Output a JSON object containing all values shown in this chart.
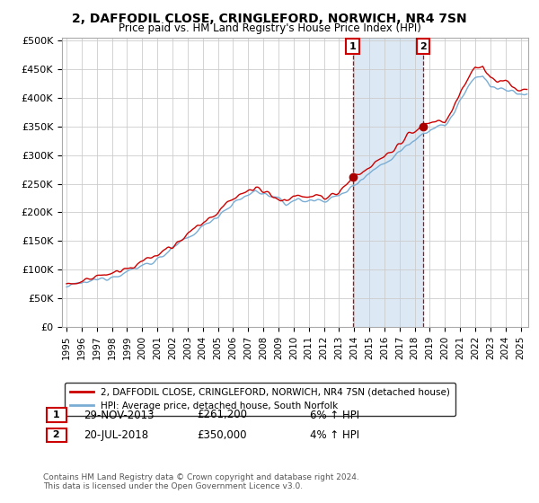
{
  "title": "2, DAFFODIL CLOSE, CRINGLEFORD, NORWICH, NR4 7SN",
  "subtitle": "Price paid vs. HM Land Registry's House Price Index (HPI)",
  "ylabel_ticks": [
    "£0",
    "£50K",
    "£100K",
    "£150K",
    "£200K",
    "£250K",
    "£300K",
    "£350K",
    "£400K",
    "£450K",
    "£500K"
  ],
  "ytick_vals": [
    0,
    50000,
    100000,
    150000,
    200000,
    250000,
    300000,
    350000,
    400000,
    450000,
    500000
  ],
  "ylim": [
    0,
    510000
  ],
  "xlim_start": 1994.7,
  "xlim_end": 2025.5,
  "sale1_date": 2013.91,
  "sale1_price": 261200,
  "sale1_label": "1",
  "sale2_date": 2018.55,
  "sale2_price": 350000,
  "sale2_label": "2",
  "hpi_color": "#7aadd4",
  "price_color": "#cc0000",
  "shade_color": "#dce9f5",
  "grid_color": "#cccccc",
  "background_color": "#ffffff",
  "legend_line1": "2, DAFFODIL CLOSE, CRINGLEFORD, NORWICH, NR4 7SN (detached house)",
  "legend_line2": "HPI: Average price, detached house, South Norfolk",
  "annotation1_date": "29-NOV-2013",
  "annotation1_price": "£261,200",
  "annotation1_hpi": "6% ↑ HPI",
  "annotation2_date": "20-JUL-2018",
  "annotation2_price": "£350,000",
  "annotation2_hpi": "4% ↑ HPI",
  "footnote": "Contains HM Land Registry data © Crown copyright and database right 2024.\nThis data is licensed under the Open Government Licence v3.0."
}
